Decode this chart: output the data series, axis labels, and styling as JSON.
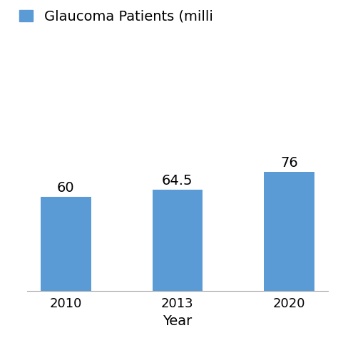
{
  "categories": [
    "2010",
    "2013",
    "2020"
  ],
  "values": [
    60,
    64.5,
    76
  ],
  "bar_color": "#5B9BD5",
  "bar_labels": [
    "60",
    "64.5",
    "76"
  ],
  "legend_label": "Glaucoma Patients (milli",
  "xlabel": "Year",
  "ylabel": "",
  "ylim": [
    0,
    160
  ],
  "yticks": [
    0,
    40,
    80,
    120,
    160
  ],
  "bar_width": 0.45,
  "label_fontsize": 14,
  "tick_fontsize": 13,
  "xlabel_fontsize": 14,
  "legend_fontsize": 14,
  "background_color": "#ffffff",
  "grid_color": "#c8c8c8"
}
